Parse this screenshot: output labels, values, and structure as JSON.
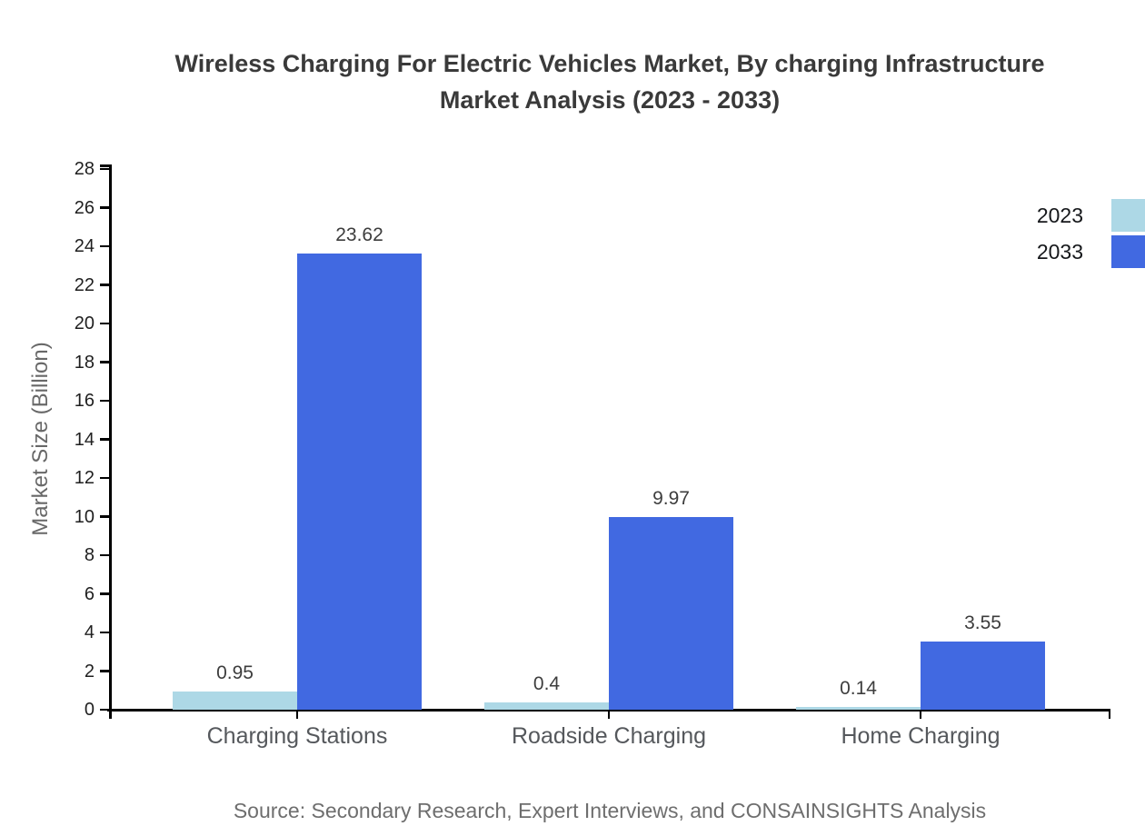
{
  "title": {
    "line1": "Wireless Charging For Electric Vehicles Market, By charging Infrastructure",
    "line2": "Market Analysis (2023 - 2033)"
  },
  "source": "Source: Secondary Research, Expert Interviews, and CONSAINSIGHTS Analysis",
  "chart_data": {
    "type": "bar",
    "title": "Wireless Charging For Electric Vehicles Market, By charging Infrastructure Market Analysis (2023 - 2033)",
    "categories": [
      "Charging Stations",
      "Roadside Charging",
      "Home Charging"
    ],
    "series": [
      {
        "name": "2023",
        "color": "#ADD8E6",
        "values": [
          0.95,
          0.4,
          0.14
        ]
      },
      {
        "name": "2033",
        "color": "#4169E1",
        "values": [
          23.62,
          9.97,
          3.55
        ]
      }
    ],
    "value_labels": [
      "0.95",
      "0.4",
      "0.14",
      "23.62",
      "9.97",
      "3.55"
    ],
    "xlabel": "",
    "ylabel": "Market Size (Billion)",
    "ylim": [
      0,
      28
    ],
    "ytick_step": 2,
    "grid": false,
    "legend_position": "top-right",
    "axis_color": "#000000"
  }
}
